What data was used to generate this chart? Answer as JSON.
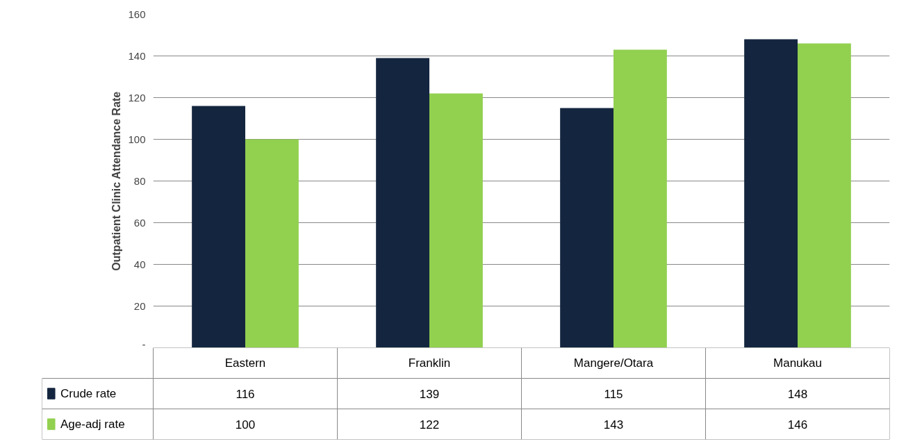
{
  "chart_data": {
    "type": "bar",
    "ylabel": "Outpatient Clinic Attendance Rate",
    "categories": [
      "Eastern",
      "Franklin",
      "Mangere/Otara",
      "Manukau"
    ],
    "series": [
      {
        "name": "Crude rate",
        "color": "#14263f",
        "values": [
          116,
          139,
          115,
          148
        ]
      },
      {
        "name": "Age-adj rate",
        "color": "#92d050",
        "values": [
          100,
          122,
          143,
          146
        ]
      }
    ],
    "ylim": [
      0,
      160
    ],
    "yticks": [
      {
        "value": 0,
        "label": "-"
      },
      20,
      40,
      60,
      80,
      100,
      120,
      140,
      160
    ],
    "grid": "y",
    "legend": "bottom",
    "data_labels": true
  }
}
